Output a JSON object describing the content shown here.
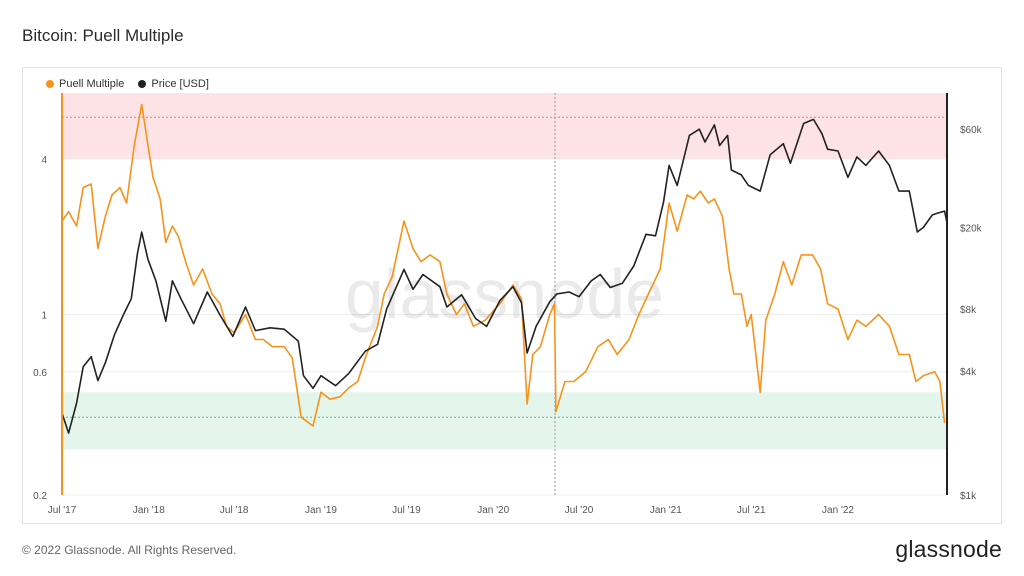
{
  "title": "Bitcoin: Puell Multiple",
  "footer": "© 2022 Glassnode. All Rights Reserved.",
  "brand": "glassnode",
  "watermark": "glassnode",
  "colors": {
    "puell": "#f7931a",
    "price": "#222222",
    "red_zone": "#fde3e5",
    "green_zone": "#e4f5ec",
    "red_line": "#e07a7a",
    "green_line": "#5cb88a",
    "grid": "#eeeeee"
  },
  "chart_data": {
    "type": "line",
    "x_range": [
      "2017-07-01",
      "2022-08-20"
    ],
    "x_ticks": [
      "Jul '17",
      "Jan '18",
      "Jul '18",
      "Jan '19",
      "Jul '19",
      "Jan '20",
      "Jul '20",
      "Jan '21",
      "Jul '21",
      "Jan '22"
    ],
    "y_left": {
      "scale": "log",
      "range": [
        0.2,
        7.2
      ],
      "ticks": [
        "0.2",
        "0.6",
        "1",
        "4"
      ]
    },
    "y_right": {
      "scale": "log",
      "range": [
        1000,
        90000
      ],
      "ticks": [
        "$1k",
        "$4k",
        "$8k",
        "$20k",
        "$60k"
      ]
    },
    "zones": {
      "red": {
        "from": 4,
        "to": 7.2,
        "line": 5.8
      },
      "green": {
        "from": 0.3,
        "to": 0.5,
        "line": 0.4
      }
    },
    "event_marker_date": "2020-05-11",
    "series": [
      {
        "name": "Puell Multiple",
        "axis": "left",
        "points": [
          [
            "2017-07-01",
            2.3
          ],
          [
            "2017-07-15",
            2.5
          ],
          [
            "2017-08-01",
            2.2
          ],
          [
            "2017-08-15",
            3.1
          ],
          [
            "2017-09-01",
            3.2
          ],
          [
            "2017-09-15",
            1.8
          ],
          [
            "2017-10-01",
            2.4
          ],
          [
            "2017-10-15",
            2.9
          ],
          [
            "2017-11-01",
            3.1
          ],
          [
            "2017-11-15",
            2.7
          ],
          [
            "2017-12-01",
            4.5
          ],
          [
            "2017-12-17",
            6.5
          ],
          [
            "2018-01-01",
            4.3
          ],
          [
            "2018-01-10",
            3.4
          ],
          [
            "2018-01-25",
            2.8
          ],
          [
            "2018-02-06",
            1.9
          ],
          [
            "2018-02-20",
            2.2
          ],
          [
            "2018-03-05",
            2.0
          ],
          [
            "2018-03-20",
            1.6
          ],
          [
            "2018-04-06",
            1.3
          ],
          [
            "2018-04-25",
            1.5
          ],
          [
            "2018-05-15",
            1.2
          ],
          [
            "2018-06-01",
            1.1
          ],
          [
            "2018-06-15",
            0.9
          ],
          [
            "2018-07-01",
            0.85
          ],
          [
            "2018-07-25",
            1.0
          ],
          [
            "2018-08-15",
            0.8
          ],
          [
            "2018-09-01",
            0.8
          ],
          [
            "2018-09-20",
            0.75
          ],
          [
            "2018-10-15",
            0.75
          ],
          [
            "2018-11-01",
            0.68
          ],
          [
            "2018-11-20",
            0.4
          ],
          [
            "2018-12-15",
            0.37
          ],
          [
            "2019-01-01",
            0.5
          ],
          [
            "2019-01-20",
            0.47
          ],
          [
            "2019-02-10",
            0.48
          ],
          [
            "2019-03-01",
            0.52
          ],
          [
            "2019-03-20",
            0.55
          ],
          [
            "2019-04-05",
            0.68
          ],
          [
            "2019-05-01",
            0.9
          ],
          [
            "2019-05-15",
            1.2
          ],
          [
            "2019-06-01",
            1.4
          ],
          [
            "2019-06-26",
            2.3
          ],
          [
            "2019-07-15",
            1.8
          ],
          [
            "2019-08-01",
            1.6
          ],
          [
            "2019-08-20",
            1.7
          ],
          [
            "2019-09-10",
            1.6
          ],
          [
            "2019-09-25",
            1.2
          ],
          [
            "2019-10-15",
            1.0
          ],
          [
            "2019-11-01",
            1.1
          ],
          [
            "2019-11-20",
            0.9
          ],
          [
            "2019-12-15",
            0.95
          ],
          [
            "2020-01-15",
            1.1
          ],
          [
            "2020-02-12",
            1.3
          ],
          [
            "2020-03-01",
            1.15
          ],
          [
            "2020-03-13",
            0.45
          ],
          [
            "2020-03-25",
            0.7
          ],
          [
            "2020-04-10",
            0.75
          ],
          [
            "2020-04-30",
            1.0
          ],
          [
            "2020-05-10",
            1.1
          ],
          [
            "2020-05-13",
            0.42
          ],
          [
            "2020-06-01",
            0.55
          ],
          [
            "2020-06-20",
            0.55
          ],
          [
            "2020-07-15",
            0.6
          ],
          [
            "2020-08-10",
            0.75
          ],
          [
            "2020-09-01",
            0.8
          ],
          [
            "2020-09-20",
            0.7
          ],
          [
            "2020-10-15",
            0.8
          ],
          [
            "2020-11-05",
            1.0
          ],
          [
            "2020-11-25",
            1.2
          ],
          [
            "2020-12-20",
            1.5
          ],
          [
            "2021-01-08",
            2.7
          ],
          [
            "2021-01-25",
            2.1
          ],
          [
            "2021-02-15",
            2.9
          ],
          [
            "2021-03-01",
            2.8
          ],
          [
            "2021-03-15",
            3.0
          ],
          [
            "2021-04-01",
            2.7
          ],
          [
            "2021-04-14",
            2.8
          ],
          [
            "2021-05-01",
            2.4
          ],
          [
            "2021-05-15",
            1.5
          ],
          [
            "2021-05-25",
            1.2
          ],
          [
            "2021-06-10",
            1.2
          ],
          [
            "2021-06-22",
            0.9
          ],
          [
            "2021-07-01",
            1.0
          ],
          [
            "2021-07-20",
            0.5
          ],
          [
            "2021-08-01",
            0.95
          ],
          [
            "2021-08-20",
            1.2
          ],
          [
            "2021-09-07",
            1.6
          ],
          [
            "2021-09-25",
            1.3
          ],
          [
            "2021-10-15",
            1.7
          ],
          [
            "2021-11-08",
            1.7
          ],
          [
            "2021-11-25",
            1.5
          ],
          [
            "2021-12-10",
            1.1
          ],
          [
            "2022-01-01",
            1.05
          ],
          [
            "2022-01-22",
            0.8
          ],
          [
            "2022-02-10",
            0.95
          ],
          [
            "2022-03-01",
            0.9
          ],
          [
            "2022-03-28",
            1.0
          ],
          [
            "2022-04-20",
            0.9
          ],
          [
            "2022-05-10",
            0.7
          ],
          [
            "2022-06-01",
            0.7
          ],
          [
            "2022-06-15",
            0.55
          ],
          [
            "2022-07-01",
            0.58
          ],
          [
            "2022-07-25",
            0.6
          ],
          [
            "2022-08-05",
            0.55
          ],
          [
            "2022-08-15",
            0.38
          ]
        ]
      },
      {
        "name": "Price [USD]",
        "axis": "right",
        "points": [
          [
            "2017-07-01",
            2500
          ],
          [
            "2017-07-15",
            2000
          ],
          [
            "2017-08-01",
            2800
          ],
          [
            "2017-08-15",
            4200
          ],
          [
            "2017-09-01",
            4700
          ],
          [
            "2017-09-15",
            3600
          ],
          [
            "2017-10-01",
            4400
          ],
          [
            "2017-10-20",
            6000
          ],
          [
            "2017-11-08",
            7500
          ],
          [
            "2017-11-25",
            9000
          ],
          [
            "2017-12-08",
            15000
          ],
          [
            "2017-12-17",
            19000
          ],
          [
            "2017-12-30",
            14000
          ],
          [
            "2018-01-16",
            11000
          ],
          [
            "2018-02-06",
            7000
          ],
          [
            "2018-02-20",
            11000
          ],
          [
            "2018-03-10",
            9000
          ],
          [
            "2018-04-06",
            6800
          ],
          [
            "2018-05-05",
            9700
          ],
          [
            "2018-06-01",
            7500
          ],
          [
            "2018-06-28",
            5900
          ],
          [
            "2018-07-25",
            8200
          ],
          [
            "2018-08-15",
            6300
          ],
          [
            "2018-09-15",
            6500
          ],
          [
            "2018-10-15",
            6400
          ],
          [
            "2018-11-14",
            5600
          ],
          [
            "2018-11-25",
            3800
          ],
          [
            "2018-12-15",
            3300
          ],
          [
            "2019-01-01",
            3800
          ],
          [
            "2019-02-01",
            3400
          ],
          [
            "2019-03-01",
            3900
          ],
          [
            "2019-04-05",
            5000
          ],
          [
            "2019-05-01",
            5400
          ],
          [
            "2019-05-20",
            8000
          ],
          [
            "2019-06-26",
            12500
          ],
          [
            "2019-07-15",
            10000
          ],
          [
            "2019-08-05",
            11800
          ],
          [
            "2019-09-10",
            10300
          ],
          [
            "2019-09-25",
            8200
          ],
          [
            "2019-10-26",
            9400
          ],
          [
            "2019-11-25",
            7200
          ],
          [
            "2019-12-18",
            6600
          ],
          [
            "2020-01-15",
            8800
          ],
          [
            "2020-02-12",
            10300
          ],
          [
            "2020-03-01",
            8600
          ],
          [
            "2020-03-13",
            4900
          ],
          [
            "2020-04-01",
            6600
          ],
          [
            "2020-04-30",
            8700
          ],
          [
            "2020-05-15",
            9500
          ],
          [
            "2020-06-10",
            9700
          ],
          [
            "2020-07-01",
            9200
          ],
          [
            "2020-07-27",
            11000
          ],
          [
            "2020-08-15",
            11800
          ],
          [
            "2020-09-05",
            10200
          ],
          [
            "2020-10-01",
            10700
          ],
          [
            "2020-10-25",
            13000
          ],
          [
            "2020-11-20",
            18500
          ],
          [
            "2020-12-10",
            18200
          ],
          [
            "2020-12-27",
            26500
          ],
          [
            "2021-01-08",
            40000
          ],
          [
            "2021-01-25",
            32000
          ],
          [
            "2021-02-20",
            56000
          ],
          [
            "2021-03-13",
            60000
          ],
          [
            "2021-03-25",
            52000
          ],
          [
            "2021-04-14",
            63000
          ],
          [
            "2021-04-25",
            50000
          ],
          [
            "2021-05-12",
            56000
          ],
          [
            "2021-05-20",
            38000
          ],
          [
            "2021-06-10",
            36000
          ],
          [
            "2021-06-25",
            32000
          ],
          [
            "2021-07-20",
            30000
          ],
          [
            "2021-08-10",
            45000
          ],
          [
            "2021-09-07",
            51000
          ],
          [
            "2021-09-22",
            41000
          ],
          [
            "2021-10-20",
            64000
          ],
          [
            "2021-11-10",
            67000
          ],
          [
            "2021-11-28",
            57000
          ],
          [
            "2021-12-10",
            48000
          ],
          [
            "2022-01-01",
            47000
          ],
          [
            "2022-01-22",
            35000
          ],
          [
            "2022-02-10",
            44000
          ],
          [
            "2022-03-01",
            40000
          ],
          [
            "2022-03-28",
            47000
          ],
          [
            "2022-04-20",
            40000
          ],
          [
            "2022-05-10",
            30000
          ],
          [
            "2022-06-01",
            30000
          ],
          [
            "2022-06-18",
            19000
          ],
          [
            "2022-07-01",
            20000
          ],
          [
            "2022-07-20",
            23000
          ],
          [
            "2022-08-01",
            23500
          ],
          [
            "2022-08-15",
            24000
          ],
          [
            "2022-08-20",
            21000
          ]
        ]
      }
    ]
  }
}
